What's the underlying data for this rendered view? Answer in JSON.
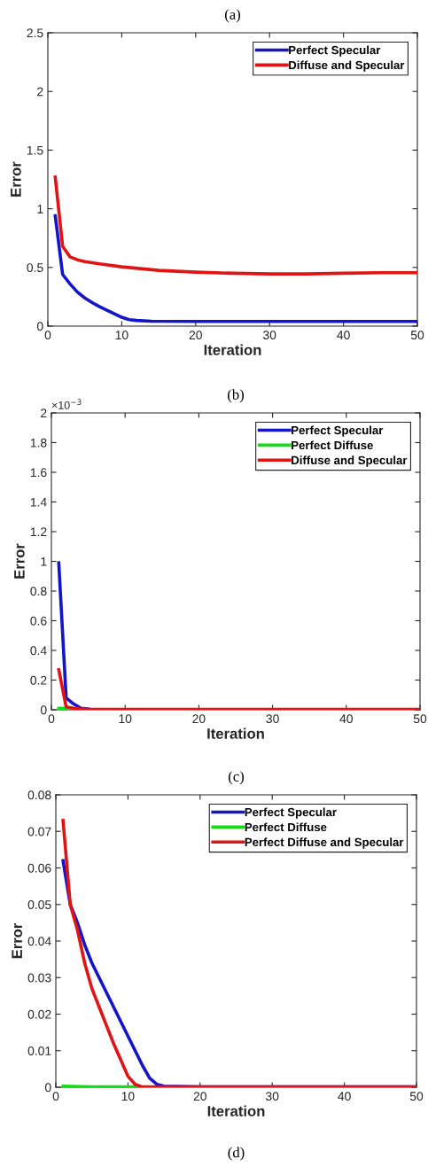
{
  "chart_data": [
    {
      "type": "line",
      "title": "(a)",
      "xlabel": "Iteration",
      "ylabel": "Error",
      "xlim": [
        0,
        50
      ],
      "xticks": [
        0,
        10,
        20,
        30,
        40,
        50
      ],
      "ylim": [
        0,
        2.5
      ],
      "yticks": [
        0,
        0.5,
        1,
        1.5,
        2,
        2.5
      ],
      "legend": "top right",
      "series": [
        {
          "name": "Perfect Specular",
          "color": "#1414c8",
          "x": [
            1,
            2,
            3,
            4,
            5,
            6,
            7,
            8,
            9,
            10,
            11,
            12,
            14,
            20,
            30,
            40,
            50
          ],
          "values": [
            0.94,
            0.44,
            0.36,
            0.29,
            0.24,
            0.2,
            0.165,
            0.135,
            0.105,
            0.075,
            0.055,
            0.048,
            0.042,
            0.04,
            0.04,
            0.04,
            0.04
          ]
        },
        {
          "name": "Diffuse and Specular",
          "color": "#e01414",
          "x": [
            1,
            2,
            3,
            4,
            5,
            7,
            10,
            15,
            20,
            25,
            30,
            35,
            40,
            45,
            50
          ],
          "values": [
            1.27,
            0.68,
            0.59,
            0.565,
            0.55,
            0.53,
            0.505,
            0.475,
            0.46,
            0.45,
            0.445,
            0.445,
            0.45,
            0.455,
            0.455
          ]
        }
      ]
    },
    {
      "type": "line",
      "title": "(b)",
      "xlabel": "Iteration",
      "ylabel": "Error",
      "annotations": [
        "×10$^{−3}$"
      ],
      "xlim": [
        0,
        50
      ],
      "xticks": [
        0,
        10,
        20,
        30,
        40,
        50
      ],
      "ylim": [
        0,
        2
      ],
      "yticks": [
        0,
        0.2,
        0.4,
        0.6,
        0.8,
        1,
        1.2,
        1.4,
        1.6,
        1.8,
        2
      ],
      "legend": "top right",
      "series": [
        {
          "name": "Perfect Specular",
          "color": "#1414c8",
          "x": [
            1,
            2,
            3,
            4,
            5
          ],
          "values": [
            0.99,
            0.08,
            0.04,
            0.01,
            0.005
          ]
        },
        {
          "name": "Perfect Diffuse",
          "color": "#14dc14",
          "x": [
            1,
            2
          ],
          "values": [
            0.01,
            0.01
          ]
        },
        {
          "name": "Diffuse and Specular",
          "color": "#e01414",
          "x": [
            1,
            2,
            3,
            4,
            5,
            50
          ],
          "values": [
            0.27,
            0.02,
            0.01,
            0.005,
            0.002,
            0.003
          ]
        }
      ]
    },
    {
      "type": "line",
      "title": "(c)",
      "xlabel": "Iteration",
      "ylabel": "Error",
      "annotations": [
        "(d)"
      ],
      "xlim": [
        0,
        50
      ],
      "xticks": [
        0,
        10,
        20,
        30,
        40,
        50
      ],
      "ylim": [
        0,
        0.08
      ],
      "yticks": [
        0,
        0.01,
        0.02,
        0.03,
        0.04,
        0.05,
        0.06,
        0.07,
        0.08
      ],
      "legend": "top right",
      "series": [
        {
          "name": "Perfect Specular",
          "color": "#1414c8",
          "x": [
            1,
            2,
            3,
            4,
            5,
            6,
            7,
            8,
            9,
            10,
            11,
            12,
            13,
            14,
            15,
            20,
            50
          ],
          "values": [
            0.062,
            0.05,
            0.045,
            0.039,
            0.034,
            0.03,
            0.026,
            0.022,
            0.018,
            0.014,
            0.01,
            0.006,
            0.0025,
            0.0008,
            0.0003,
            0.0001,
            0.0001
          ]
        },
        {
          "name": "Perfect Diffuse",
          "color": "#14dc14",
          "x": [
            1,
            5,
            11
          ],
          "values": [
            0.0003,
            0.0001,
            0.0001
          ]
        },
        {
          "name": "Perfect Diffuse and Specular",
          "color": "#e01414",
          "x": [
            1,
            2,
            3,
            4,
            5,
            6,
            7,
            8,
            9,
            10,
            11,
            12,
            50
          ],
          "values": [
            0.073,
            0.05,
            0.043,
            0.034,
            0.027,
            0.022,
            0.017,
            0.012,
            0.0075,
            0.003,
            0.0008,
            0.0001,
            0.0001
          ]
        }
      ]
    }
  ]
}
